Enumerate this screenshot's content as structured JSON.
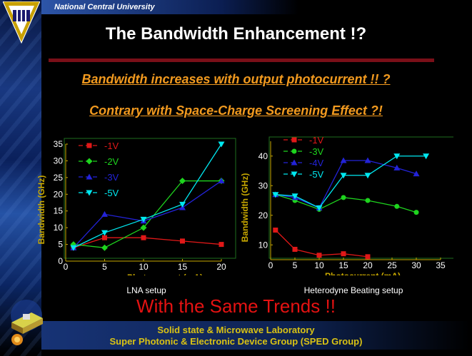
{
  "header": {
    "university": "National Central University"
  },
  "title": "The Bandwidth Enhancement !?",
  "subtitle1": "Bandwidth increases with output photocurrent !! ?",
  "subtitle2": "Contrary with Space-Charge Screening Effect ?!",
  "trend_text": "With the Same Trends !!",
  "footer": {
    "line1": "Solid state & Microwave Laboratory",
    "line2": "Super Photonic & Electronic Device Group (SPED Group)"
  },
  "colors": {
    "m1V": "#e01818",
    "m2V": "#1ed41e",
    "m3V": "#2323d8",
    "m5V": "#00e8f0",
    "axis": "#c8a800",
    "frame": "#1e6e1e"
  },
  "chart_data": [
    {
      "type": "line",
      "caption": "LNA setup",
      "xlabel": "Photocurrent (mA)",
      "ylabel": "Bandwidth (GHz)",
      "xlim": [
        0,
        20
      ],
      "ylim": [
        0,
        35
      ],
      "xticks": [
        "0",
        "5",
        "10",
        "15",
        "20"
      ],
      "yticks": [
        "0",
        "5",
        "10",
        "15",
        "20",
        "25",
        "30",
        "35"
      ],
      "series": [
        {
          "name": "-1V",
          "marker": "square",
          "color": "#e01818",
          "points": [
            [
              1,
              4
            ],
            [
              5,
              7
            ],
            [
              10,
              7
            ],
            [
              15,
              6
            ],
            [
              20,
              5
            ]
          ]
        },
        {
          "name": "-2V",
          "marker": "diamond",
          "color": "#1ed41e",
          "points": [
            [
              1,
              5
            ],
            [
              5,
              4
            ],
            [
              10,
              10
            ],
            [
              15,
              24
            ],
            [
              20,
              24
            ]
          ]
        },
        {
          "name": "-3V",
          "marker": "triangle-up",
          "color": "#2323d8",
          "points": [
            [
              1,
              4
            ],
            [
              5,
              14
            ],
            [
              10,
              12
            ],
            [
              15,
              16
            ],
            [
              20,
              24
            ]
          ]
        },
        {
          "name": "-5V",
          "marker": "triangle-down",
          "color": "#00e8f0",
          "points": [
            [
              1,
              4
            ],
            [
              5,
              8.5
            ],
            [
              10,
              12.5
            ],
            [
              15,
              17
            ],
            [
              20,
              35
            ]
          ]
        }
      ]
    },
    {
      "type": "line",
      "caption": "Heterodyne Beating setup",
      "xlabel": "Photocurrent (mA)",
      "ylabel": "Bandwidth (GHz)",
      "xlim": [
        0,
        35
      ],
      "ylim": [
        5,
        45
      ],
      "xticks": [
        "0",
        "5",
        "10",
        "15",
        "20",
        "25",
        "30",
        "35"
      ],
      "yticks": [
        "10",
        "20",
        "30",
        "40"
      ],
      "series": [
        {
          "name": "-1V",
          "marker": "square",
          "color": "#e01818",
          "points": [
            [
              1,
              15
            ],
            [
              5,
              8.5
            ],
            [
              10,
              6.5
            ],
            [
              15,
              7
            ],
            [
              20,
              6
            ]
          ]
        },
        {
          "name": "-3V",
          "marker": "circle",
          "color": "#1ed41e",
          "points": [
            [
              1,
              27
            ],
            [
              5,
              25
            ],
            [
              10,
              22
            ],
            [
              15,
              26
            ],
            [
              20,
              25
            ],
            [
              26,
              23
            ],
            [
              30,
              21
            ]
          ]
        },
        {
          "name": "-4V",
          "marker": "triangle-up",
          "color": "#2323d8",
          "points": [
            [
              1,
              27
            ],
            [
              5,
              26
            ],
            [
              10,
              22.5
            ],
            [
              15,
              38.5
            ],
            [
              20,
              38.5
            ],
            [
              26,
              36
            ],
            [
              30,
              34
            ]
          ]
        },
        {
          "name": "-5V",
          "marker": "triangle-down",
          "color": "#00e8f0",
          "points": [
            [
              1,
              27
            ],
            [
              5,
              26.5
            ],
            [
              10,
              22.5
            ],
            [
              15,
              33.5
            ],
            [
              20,
              33.5
            ],
            [
              26,
              40
            ],
            [
              32,
              40
            ]
          ]
        }
      ]
    }
  ]
}
